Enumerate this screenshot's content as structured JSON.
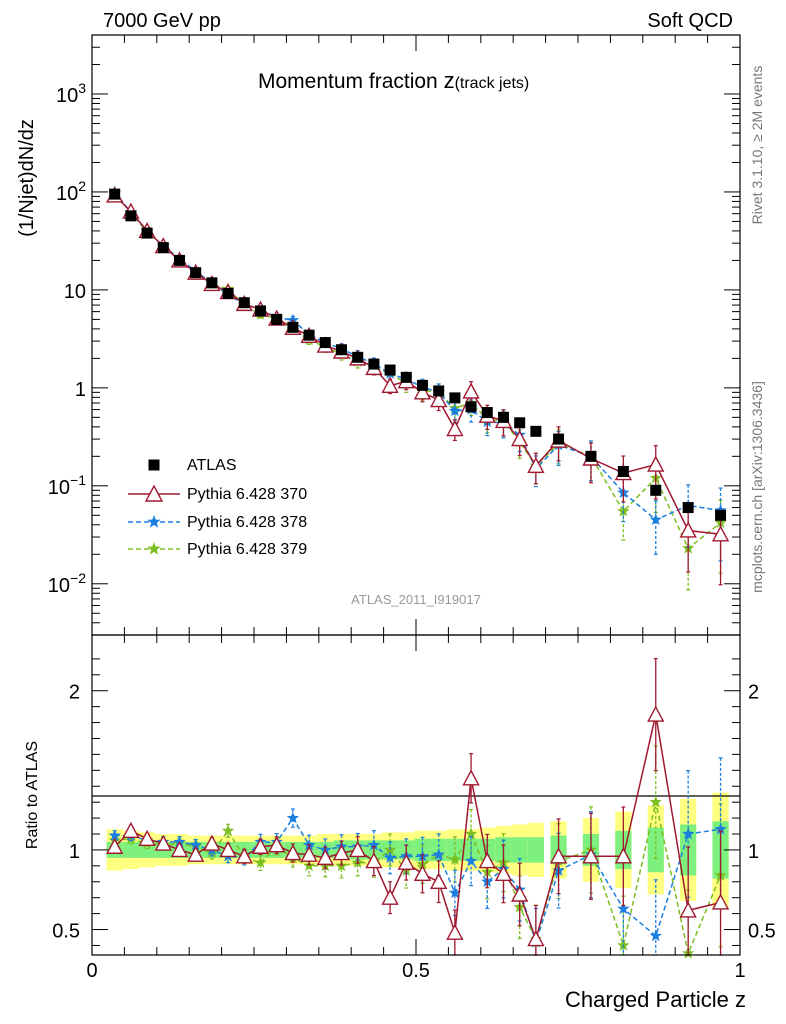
{
  "header": {
    "left_label": "7000 GeV pp",
    "right_label": "Soft QCD"
  },
  "side_labels": {
    "rivet": "Rivet 3.1.10, ≥ 2M events",
    "mcplots": "mcplots.cern.ch [arXiv:1306.3436]"
  },
  "analysis_id": "ATLAS_2011_I919017",
  "chart_data": [
    {
      "type": "scatter",
      "title_main": "Momentum fraction ",
      "title_var": "z",
      "title_sub": "(track jets)",
      "ylabel": "(1/Njet)dN/dz",
      "xlabel": "Charged Particle z",
      "xlim": [
        0,
        1
      ],
      "ylim": [
        0.003,
        4000
      ],
      "yscale": "log",
      "y_tick_labels": [
        {
          "base": "10",
          "exp": "−2",
          "v": 0.01
        },
        {
          "base": "10",
          "exp": "−1",
          "v": 0.1
        },
        {
          "base": "1",
          "exp": "",
          "v": 1
        },
        {
          "base": "10",
          "exp": "",
          "v": 10
        },
        {
          "base": "10",
          "exp": "2",
          "v": 100
        },
        {
          "base": "10",
          "exp": "3",
          "v": 1000
        }
      ],
      "legend_position": "bottom-left",
      "x": [
        0.035,
        0.06,
        0.085,
        0.11,
        0.135,
        0.16,
        0.185,
        0.21,
        0.235,
        0.26,
        0.285,
        0.31,
        0.335,
        0.36,
        0.385,
        0.41,
        0.435,
        0.46,
        0.485,
        0.51,
        0.535,
        0.56,
        0.585,
        0.61,
        0.635,
        0.66,
        0.685,
        0.72,
        0.77,
        0.82,
        0.87,
        0.92,
        0.97
      ],
      "series": [
        {
          "name": "ATLAS",
          "color": "#000000",
          "marker": "square",
          "values": [
            95,
            57,
            38,
            27,
            20,
            15,
            11.8,
            9.2,
            7.4,
            6.1,
            5.0,
            4.15,
            3.45,
            2.9,
            2.45,
            2.05,
            1.75,
            1.52,
            1.28,
            1.06,
            0.93,
            0.79,
            0.64,
            0.56,
            0.5,
            0.44,
            0.36,
            0.3,
            0.2,
            0.14,
            0.09,
            0.06,
            0.05
          ]
        },
        {
          "name": "Pythia 6.428 370",
          "color": "#a01830",
          "marker": "triangle",
          "dash": false,
          "values": [
            92,
            63,
            40,
            28,
            20,
            15,
            11.5,
            9.5,
            7.2,
            6.3,
            5.1,
            4.1,
            3.4,
            2.7,
            2.35,
            2.0,
            1.6,
            1.05,
            1.17,
            0.9,
            0.75,
            0.38,
            0.92,
            0.52,
            0.46,
            0.3,
            0.16,
            0.29,
            0.19,
            0.135,
            0.165,
            0.035,
            0.032
          ]
        },
        {
          "name": "Pythia 6.428 378",
          "color": "#1b7fe0",
          "marker": "star",
          "dash": true,
          "values": [
            100,
            62,
            40,
            28,
            21,
            15.5,
            11.8,
            9.0,
            7.1,
            6.4,
            5.2,
            4.9,
            3.5,
            2.9,
            2.5,
            2.1,
            1.75,
            1.4,
            1.22,
            1.02,
            0.9,
            0.58,
            0.6,
            0.45,
            0.44,
            0.33,
            0.15,
            0.26,
            0.2,
            0.085,
            0.045,
            0.063,
            0.056
          ]
        },
        {
          "name": "Pythia 6.428 379",
          "color": "#7cbf20",
          "marker": "star",
          "dash": true,
          "values": [
            97,
            61,
            39,
            28,
            21,
            15.3,
            11.5,
            10.2,
            7.0,
            5.6,
            5.1,
            3.9,
            3.1,
            2.6,
            2.2,
            1.85,
            1.6,
            1.42,
            1.1,
            0.94,
            0.9,
            0.62,
            0.7,
            0.48,
            0.46,
            0.28,
            0.16,
            0.27,
            0.2,
            0.055,
            0.12,
            0.023,
            0.042
          ]
        }
      ]
    },
    {
      "type": "scatter",
      "ylabel": "Ratio to ATLAS",
      "xlim": [
        0,
        1
      ],
      "ylim": [
        0.34,
        2.35
      ],
      "y_tick_labels": [
        "0.5",
        "1",
        "2"
      ],
      "x_tick_labels": [
        "0",
        "0.5",
        "1"
      ],
      "bands": {
        "stat_color": "#7df07d",
        "total_color": "#ffff80",
        "stat": [
          0.05,
          0.05,
          0.05,
          0.05,
          0.05,
          0.05,
          0.05,
          0.05,
          0.05,
          0.05,
          0.05,
          0.05,
          0.05,
          0.05,
          0.06,
          0.06,
          0.06,
          0.06,
          0.06,
          0.07,
          0.07,
          0.07,
          0.07,
          0.07,
          0.08,
          0.08,
          0.08,
          0.09,
          0.1,
          0.12,
          0.14,
          0.16,
          0.18
        ],
        "total": [
          0.13,
          0.12,
          0.11,
          0.1,
          0.1,
          0.09,
          0.09,
          0.09,
          0.09,
          0.09,
          0.09,
          0.09,
          0.09,
          0.1,
          0.1,
          0.1,
          0.1,
          0.11,
          0.11,
          0.12,
          0.12,
          0.13,
          0.13,
          0.14,
          0.15,
          0.16,
          0.17,
          0.18,
          0.2,
          0.24,
          0.28,
          0.32,
          0.36
        ]
      },
      "series": [
        {
          "name": "Pythia 6.428 370",
          "values": [
            1.02,
            1.12,
            1.07,
            1.04,
            1.0,
            0.97,
            1.04,
            1.0,
            0.96,
            1.02,
            1.03,
            0.98,
            0.97,
            0.95,
            0.98,
            1.0,
            0.93,
            0.7,
            0.92,
            0.85,
            0.8,
            0.48,
            1.45,
            0.93,
            0.85,
            0.72,
            0.44,
            0.96,
            0.96,
            0.96,
            1.85,
            0.62,
            0.67
          ]
        },
        {
          "name": "Pythia 6.428 378",
          "values": [
            1.09,
            1.09,
            1.06,
            1.05,
            1.05,
            1.03,
            1.0,
            0.96,
            0.95,
            1.05,
            1.05,
            1.2,
            1.03,
            1.0,
            1.02,
            1.02,
            1.03,
            0.95,
            0.96,
            0.96,
            0.97,
            0.73,
            0.93,
            0.8,
            0.88,
            0.75,
            0.42,
            0.87,
            0.97,
            0.63,
            0.46,
            1.1,
            1.13
          ]
        },
        {
          "name": "Pythia 6.428 379",
          "values": [
            1.06,
            1.07,
            1.04,
            1.03,
            1.04,
            1.02,
            0.98,
            1.12,
            0.95,
            0.92,
            1.02,
            0.95,
            0.9,
            0.9,
            0.9,
            0.92,
            0.92,
            1.0,
            0.87,
            0.91,
            0.97,
            0.94,
            1.1,
            0.86,
            0.92,
            0.64,
            0.44,
            0.93,
            1.0,
            0.4,
            1.3,
            0.35,
            0.84
          ]
        }
      ]
    }
  ]
}
